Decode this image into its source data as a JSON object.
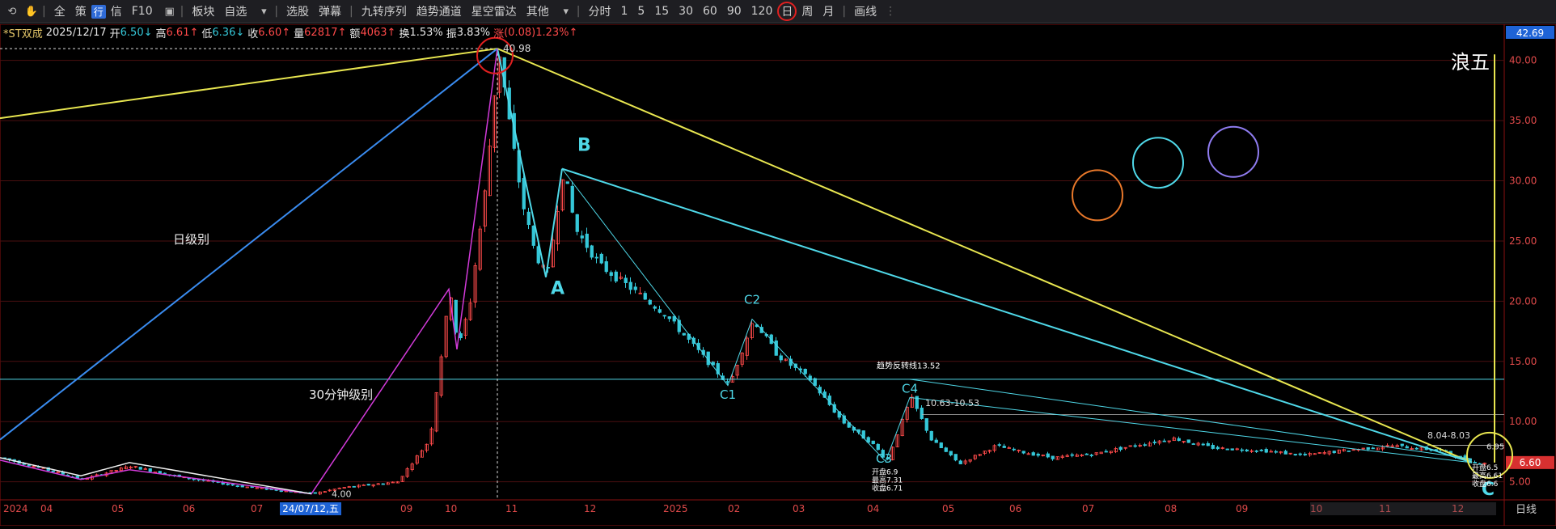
{
  "toolbar": {
    "nav_icons": [
      "back-icon",
      "hand-icon"
    ],
    "items": [
      "全",
      "策",
      "行",
      "信",
      "F10",
      "",
      "板块",
      "自选",
      "选股",
      "弹幕",
      "九转序列",
      "趋势通道",
      "星空雷达",
      "其他"
    ],
    "periods": [
      "分时",
      "1",
      "5",
      "15",
      "30",
      "60",
      "90",
      "120",
      "日",
      "周",
      "月"
    ],
    "active_period": "日",
    "draw_label": "画线"
  },
  "stock": {
    "name": "*ST双成",
    "date": "2025/12/17",
    "open_label": "开",
    "open": "6.50",
    "high_label": "高",
    "high": "6.61",
    "low_label": "低",
    "low": "6.36",
    "close_label": "收",
    "close": "6.60",
    "volume_label": "量",
    "volume": "62817",
    "amount_label": "额",
    "amount": "4063",
    "turnover_label": "换",
    "turnover": "1.53%",
    "amplitude_label": "振",
    "amplitude": "3.83%",
    "change_label": "涨",
    "change": "(0.08)",
    "change_pct": "1.23%"
  },
  "chart_data": {
    "type": "candlestick",
    "y_axis": {
      "ticks": [
        5,
        10,
        15,
        20,
        25,
        30,
        35,
        40
      ],
      "tick_labels": [
        "5.00",
        "10.00",
        "15.00",
        "20.00",
        "25.00",
        "30.00",
        "35.00",
        "40.00"
      ],
      "ylim": [
        3.5,
        43
      ],
      "top_label": "42.69",
      "last_price_label": "6.60"
    },
    "x_axis": {
      "labels": [
        "2024",
        "04",
        "05",
        "06",
        "07",
        "24/07/12,五",
        "09",
        "10",
        "11",
        "12",
        "2025",
        "02",
        "03",
        "04",
        "05",
        "06",
        "07",
        "08",
        "09",
        "10",
        "11",
        "12"
      ],
      "right_label": "日线",
      "crosshair_label": "24/07/12,五"
    },
    "series_close": [
      {
        "t": "2024-01",
        "v": 7.0
      },
      {
        "t": "2024-02",
        "v": 6.2
      },
      {
        "t": "2024-03",
        "v": 5.2
      },
      {
        "t": "2024-04",
        "v": 6.3
      },
      {
        "t": "2024-05",
        "v": 5.5
      },
      {
        "t": "2024-06",
        "v": 4.8
      },
      {
        "t": "2024-07",
        "v": 4.0
      },
      {
        "t": "2024-08",
        "v": 5.0
      },
      {
        "t": "2024-09",
        "v": 8.0
      },
      {
        "t": "2024-10a",
        "v": 21.0
      },
      {
        "t": "2024-10b",
        "v": 16.0
      },
      {
        "t": "2024-10c",
        "v": 40.98
      },
      {
        "t": "2024-11a",
        "v": 28.0
      },
      {
        "t": "2024-11b",
        "v": 22.0
      },
      {
        "t": "2024-11c",
        "v": 31.0
      },
      {
        "t": "2024-12",
        "v": 23.0
      },
      {
        "t": "2025-01",
        "v": 17.0
      },
      {
        "t": "2025-02a",
        "v": 13.0
      },
      {
        "t": "2025-02b",
        "v": 18.5
      },
      {
        "t": "2025-03",
        "v": 14.0
      },
      {
        "t": "2025-04a",
        "v": 8.0
      },
      {
        "t": "2025-04b",
        "v": 6.7
      },
      {
        "t": "2025-04c",
        "v": 12.0
      },
      {
        "t": "2025-05",
        "v": 7.0
      },
      {
        "t": "2025-06",
        "v": 8.5
      },
      {
        "t": "2025-07",
        "v": 7.2
      },
      {
        "t": "2025-08",
        "v": 8.5
      },
      {
        "t": "2025-09",
        "v": 7.5
      },
      {
        "t": "2025-10",
        "v": 7.0
      },
      {
        "t": "2025-11",
        "v": 8.0
      },
      {
        "t": "2025-12",
        "v": 6.6
      }
    ],
    "annotations": {
      "peak": "40.98",
      "low_2024": "4.00",
      "wave_labels": [
        "A",
        "B",
        "C"
      ],
      "sub_wave_labels": [
        "C1",
        "C2",
        "C3",
        "C4"
      ],
      "text_day_level": "日级别",
      "text_30min_level": "30分钟级别",
      "text_wave_five": "浪五",
      "trend_reversal": "趋势反转线13.52",
      "range_label_1": "10.63-10.53",
      "range_label_2": "8.04-8.03",
      "c3_detail": [
        "开盘6.9",
        "最高7.31",
        "收盘6.71"
      ],
      "end_detail": [
        "开盘6.5",
        "最高6.61",
        "收盘6.6"
      ],
      "end_value": "6.95"
    }
  },
  "colors": {
    "up": "#ff4a4a",
    "down": "#35c7d8",
    "grid": "#4a0f10",
    "yellow_line": "#e8e650",
    "blue_line": "#3a8cf0",
    "cyan_line": "#4fd8e8",
    "magenta_line": "#d23ad9",
    "circle_orange": "#e8782a",
    "circle_cyan": "#4fd8e8",
    "circle_purple": "#8f7cf0"
  }
}
